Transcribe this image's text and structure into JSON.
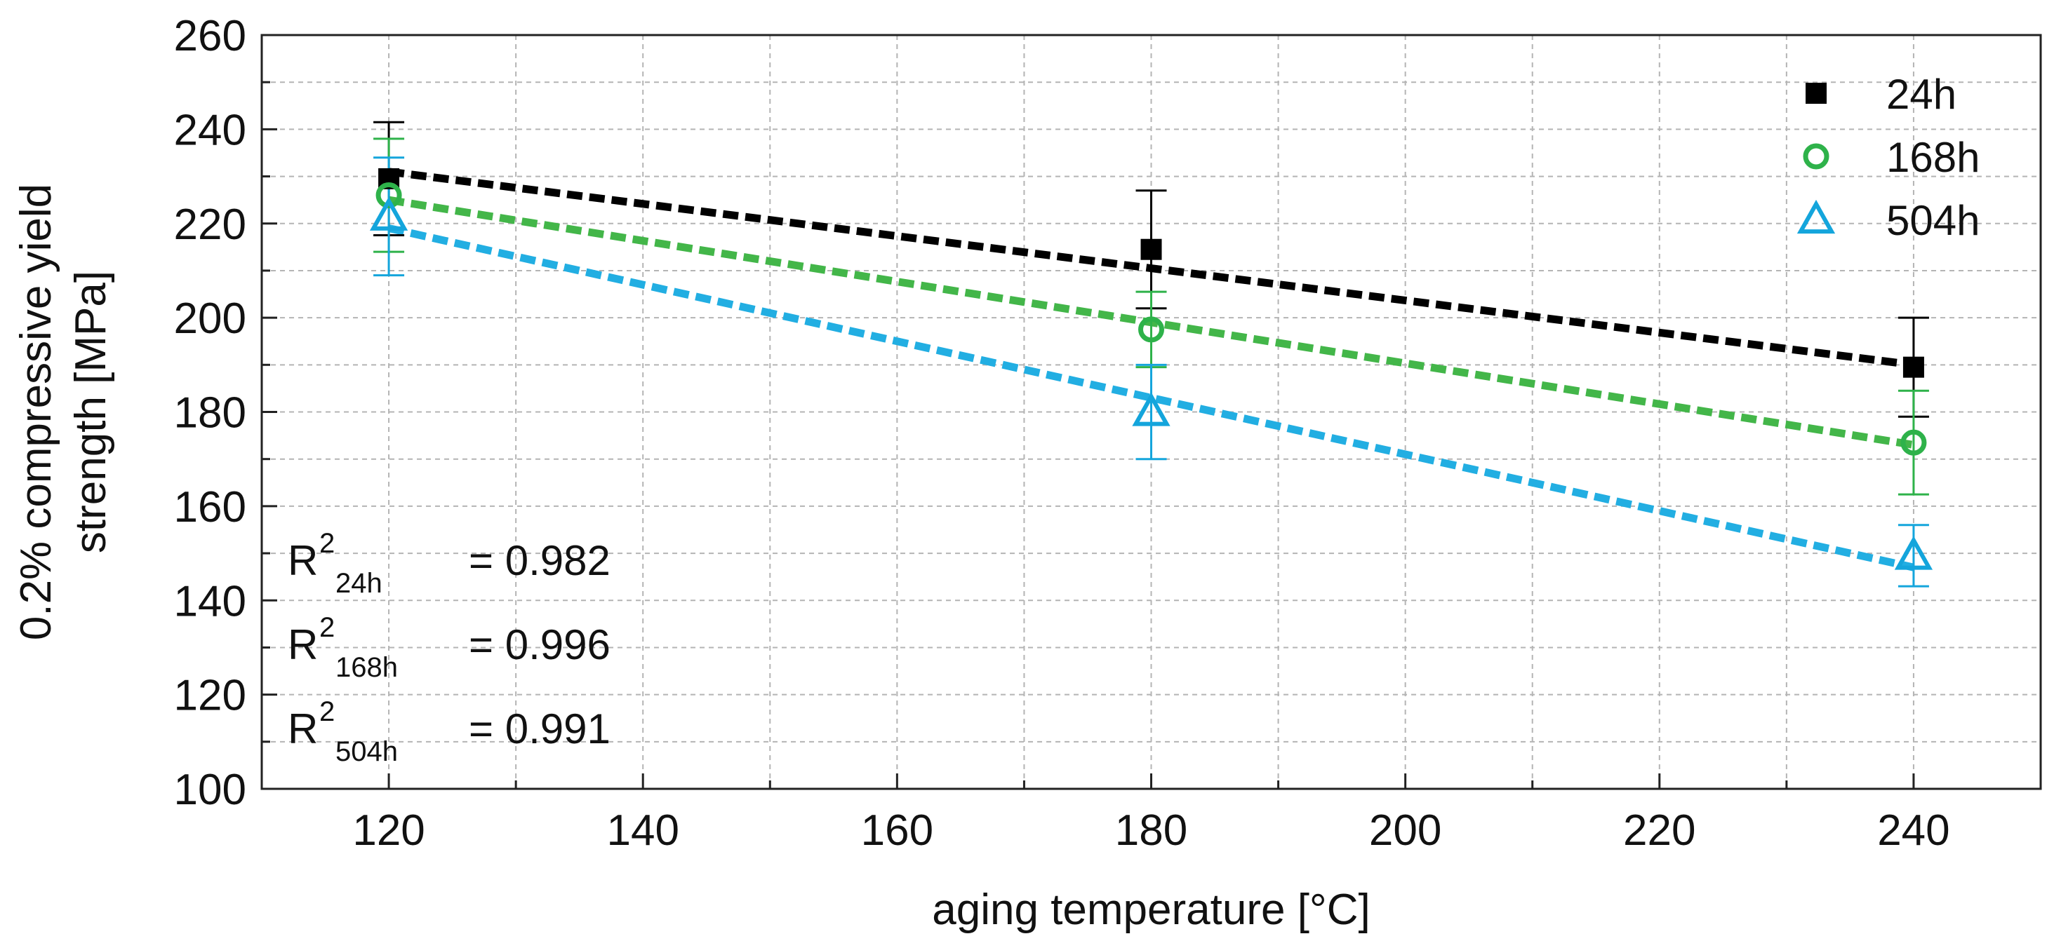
{
  "chart_data": {
    "type": "scatter",
    "xlabel": "aging temperature [°C]",
    "ylabel_lines": [
      "0.2% compressive yield",
      "strength [MPa]"
    ],
    "xlim": [
      110,
      250
    ],
    "ylim": [
      100,
      260
    ],
    "x_ticks": [
      120,
      140,
      160,
      180,
      200,
      220,
      240
    ],
    "y_ticks": [
      100,
      120,
      140,
      160,
      180,
      200,
      220,
      240,
      260
    ],
    "grid": true,
    "legend_position": "top-right",
    "series": [
      {
        "name": "24h",
        "marker": "square-filled",
        "color": "#000000",
        "trend_color": "#000000",
        "x": [
          120,
          180,
          240
        ],
        "y": [
          229.5,
          214.5,
          189.5
        ],
        "err": [
          12,
          12.5,
          10.5
        ],
        "fit": {
          "x": [
            120,
            240
          ],
          "y": [
            231,
            190
          ]
        }
      },
      {
        "name": "168h",
        "marker": "circle-open",
        "color": "#2eb24a",
        "trend_color": "#43b649",
        "x": [
          120,
          180,
          240
        ],
        "y": [
          226,
          197.5,
          173.5
        ],
        "err": [
          12,
          8,
          11
        ],
        "fit": {
          "x": [
            120,
            240
          ],
          "y": [
            225,
            173
          ]
        }
      },
      {
        "name": "504h",
        "marker": "triangle-open",
        "color": "#14a5dc",
        "trend_color": "#22aee2",
        "x": [
          120,
          180,
          240
        ],
        "y": [
          221.5,
          180,
          149.5
        ],
        "err": [
          12.5,
          10,
          6.5
        ],
        "fit": {
          "x": [
            120,
            240
          ],
          "y": [
            219,
            147
          ]
        }
      }
    ],
    "r2": [
      {
        "label": "R",
        "sup": "2",
        "sub": "24h",
        "value": "= 0.982"
      },
      {
        "label": "R",
        "sup": "2",
        "sub": "168h",
        "value": "= 0.996"
      },
      {
        "label": "R",
        "sup": "2",
        "sub": "504h",
        "value": "= 0.991"
      }
    ]
  }
}
